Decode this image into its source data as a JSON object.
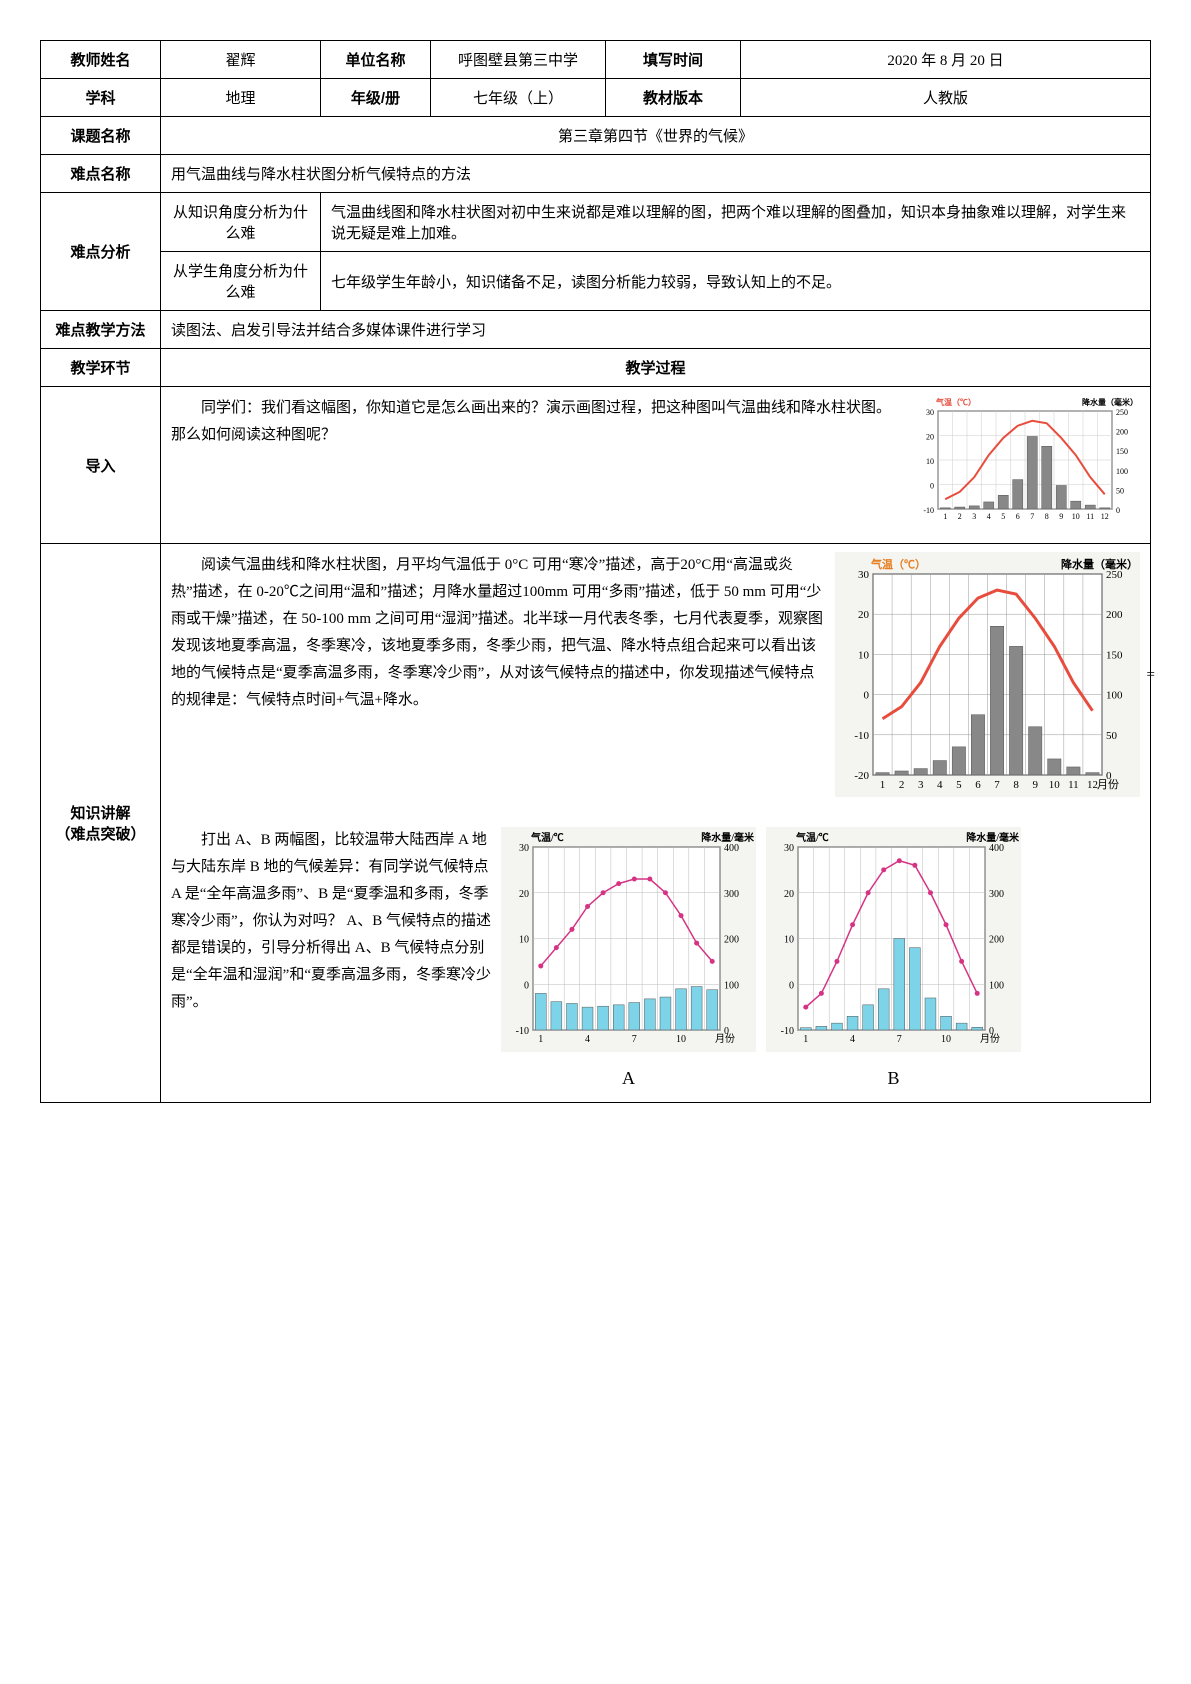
{
  "header": {
    "teacher_name_label": "教师姓名",
    "teacher_name": "翟辉",
    "unit_label": "单位名称",
    "unit": "呼图壁县第三中学",
    "fill_time_label": "填写时间",
    "fill_time": "2020 年 8 月 20 日",
    "subject_label": "学科",
    "subject": "地理",
    "grade_label": "年级/册",
    "grade": "七年级（上）",
    "textbook_version_label": "教材版本",
    "textbook_version": "人教版",
    "course_name_label": "课题名称",
    "course_name": "第三章第四节《世界的气候》",
    "difficulty_name_label": "难点名称",
    "difficulty_name": "用气温曲线与降水柱状图分析气候特点的方法",
    "difficulty_analysis_label": "难点分析",
    "knowledge_angle_label": "从知识角度分析为什么难",
    "knowledge_angle": "气温曲线图和降水柱状图对初中生来说都是难以理解的图，把两个难以理解的图叠加，知识本身抽象难以理解，对学生来说无疑是难上加难。",
    "student_angle_label": "从学生角度分析为什么难",
    "student_angle": "七年级学生年龄小，知识储备不足，读图分析能力较弱，导致认知上的不足。",
    "teaching_method_label": "难点教学方法",
    "teaching_method": "读图法、启发引导法并结合多媒体课件进行学习",
    "teaching_segment_label": "教学环节",
    "teaching_process_label": "教学过程"
  },
  "intro": {
    "label": "导入",
    "text": "同学们：我们看这幅图，你知道它是怎么画出来的？演示画图过程，把这种图叫气温曲线和降水柱状图。那么如何阅读这种图呢？"
  },
  "knowledge": {
    "label_line1": "知识讲解",
    "label_line2": "（难点突破）",
    "para1": "阅读气温曲线和降水柱状图，月平均气温低于 0°C 可用“寒冷”描述，高于20°C用“高温或炎热”描述，在 0-20℃之间用“温和”描述；月降水量超过100mm 可用“多雨”描述，低于 50 mm 可用“少雨或干燥”描述，在 50-100 mm 之间可用“湿润”描述。北半球一月代表冬季，七月代表夏季，观察图发现该地夏季高温，冬季寒冷，该地夏季多雨，冬季少雨，把气温、降水特点组合起来可以看出该地的气候特点是“夏季高温多雨，冬季寒冷少雨”，从对该气候特点的描述中，你发现描述气候特点的规律是：气候特点时间+气温+降水。",
    "para2": "打出 A、B 两幅图，比较温带大陆西岸 A 地与大陆东岸 B 地的气候差异：有同学说气候特点 A 是“全年高温多雨”、B 是“夏季温和多雨，冬季寒冷少雨”，你认为对吗？ A、B 气候特点的描述都是错误的，引导分析得出 A、B 气候特点分别是“全年温和湿润”和“夏季高温多雨，冬季寒冷少雨”。"
  },
  "chart_small": {
    "type": "climate_graph",
    "temp_label": "气温（℃）",
    "precip_label": "降水量（毫米）",
    "temp_color": "#e74c3c",
    "precip_color": "#888888",
    "bg_color": "#ffffff",
    "grid_color": "#cccccc",
    "temp_ylim": [
      -10,
      30
    ],
    "temp_ticks": [
      -10,
      0,
      10,
      20,
      30
    ],
    "precip_ylim": [
      0,
      250
    ],
    "precip_ticks": [
      0,
      50,
      100,
      150,
      200,
      250
    ],
    "months": [
      1,
      2,
      3,
      4,
      5,
      6,
      7,
      8,
      9,
      10,
      11,
      12
    ],
    "temp_values": [
      -6,
      -3,
      3,
      12,
      19,
      24,
      26,
      25,
      19,
      12,
      3,
      -4
    ],
    "precip_values": [
      3,
      5,
      8,
      18,
      35,
      75,
      185,
      160,
      60,
      20,
      10,
      3
    ]
  },
  "chart_big": {
    "type": "climate_graph",
    "temp_label": "气温（℃）",
    "precip_label": "降水量（毫米）",
    "temp_color": "#e74c3c",
    "precip_color": "#888888",
    "bg_color": "#f4f4f0",
    "grid_color": "#999999",
    "temp_ylim": [
      -20,
      30
    ],
    "temp_ticks": [
      -20,
      -10,
      0,
      10,
      20,
      30
    ],
    "precip_ylim": [
      0,
      250
    ],
    "precip_ticks": [
      0,
      50,
      100,
      150,
      200,
      250
    ],
    "months": [
      1,
      2,
      3,
      4,
      5,
      6,
      7,
      8,
      9,
      10,
      11,
      12
    ],
    "x_label": "月份",
    "temp_values": [
      -6,
      -3,
      3,
      12,
      19,
      24,
      26,
      25,
      19,
      12,
      3,
      -4
    ],
    "precip_values": [
      3,
      5,
      8,
      18,
      35,
      75,
      185,
      160,
      60,
      20,
      10,
      3
    ]
  },
  "chart_A": {
    "type": "climate_graph",
    "letter": "A",
    "temp_label": "气温/℃",
    "precip_label": "降水量/毫米",
    "temp_color": "#d63384",
    "precip_color": "#7dd3e8",
    "bg_color": "#f4f4f0",
    "grid_color": "#bbbbbb",
    "temp_ylim": [
      -10,
      30
    ],
    "temp_ticks": [
      -10,
      0,
      10,
      20,
      30
    ],
    "precip_ylim": [
      0,
      400
    ],
    "precip_ticks": [
      0,
      100,
      200,
      300,
      400
    ],
    "months": [
      1,
      4,
      7,
      10
    ],
    "x_label": "月份",
    "temp_values": [
      4,
      8,
      12,
      17,
      20,
      22,
      23,
      23,
      20,
      15,
      9,
      5
    ],
    "precip_values": [
      80,
      62,
      58,
      50,
      52,
      55,
      60,
      68,
      72,
      90,
      95,
      88
    ]
  },
  "chart_B": {
    "type": "climate_graph",
    "letter": "B",
    "temp_label": "气温/℃",
    "precip_label": "降水量/毫米",
    "temp_color": "#d63384",
    "precip_color": "#7dd3e8",
    "bg_color": "#f4f4f0",
    "grid_color": "#bbbbbb",
    "temp_ylim": [
      -10,
      30
    ],
    "temp_ticks": [
      -10,
      0,
      10,
      20,
      30
    ],
    "precip_ylim": [
      0,
      400
    ],
    "precip_ticks": [
      0,
      100,
      200,
      300,
      400
    ],
    "months": [
      1,
      4,
      7,
      10
    ],
    "x_label": "月份",
    "temp_values": [
      -5,
      -2,
      5,
      13,
      20,
      25,
      27,
      26,
      20,
      13,
      5,
      -2
    ],
    "precip_values": [
      5,
      8,
      15,
      30,
      55,
      90,
      200,
      180,
      70,
      30,
      15,
      6
    ]
  }
}
